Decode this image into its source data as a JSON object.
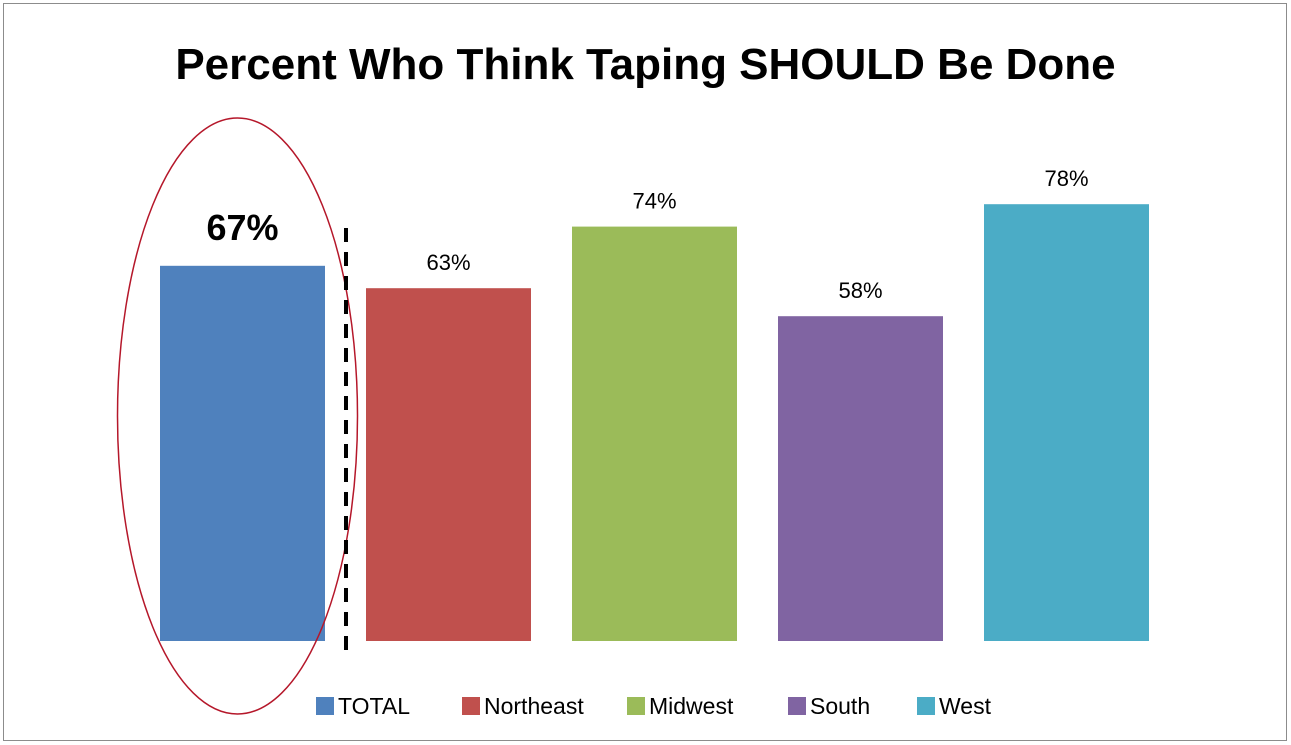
{
  "chart_data": {
    "type": "bar",
    "title": "Percent Who Think Taping SHOULD Be Done",
    "categories": [
      "TOTAL",
      "Northeast",
      "Midwest",
      "South",
      "West"
    ],
    "values": [
      67,
      63,
      74,
      58,
      78
    ],
    "value_labels": [
      "67%",
      "63%",
      "74%",
      "58%",
      "78%"
    ],
    "colors": [
      "#4f81bd",
      "#c0504d",
      "#9bbb59",
      "#8064a2",
      "#4bacc6"
    ],
    "highlight": {
      "category": "TOTAL",
      "outline_color": "#b5172a"
    },
    "separator": {
      "style": "dashed",
      "color": "#000000"
    },
    "ylim": [
      0,
      100
    ],
    "grid": false,
    "legend_position": "bottom"
  }
}
